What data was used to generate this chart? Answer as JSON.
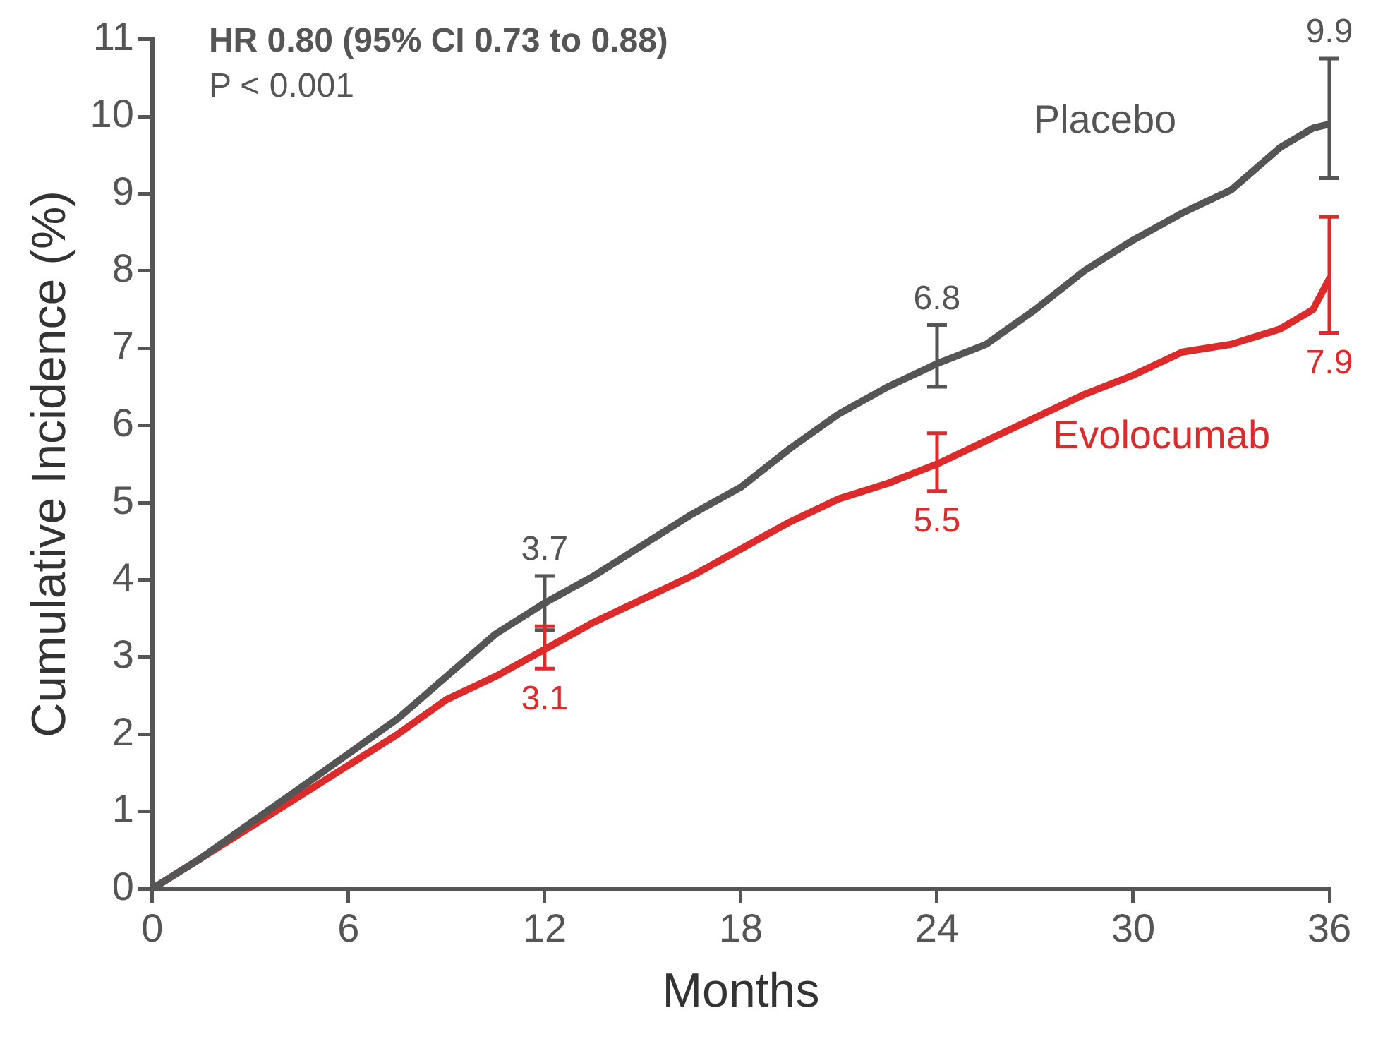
{
  "chart_data": {
    "type": "line",
    "xlabel": "Months",
    "ylabel": "Cumulative Incidence (%)",
    "annotations": [
      "HR 0.80 (95% CI 0.73 to 0.88)",
      "P < 0.001"
    ],
    "x": [
      0,
      1.5,
      3,
      4.5,
      6,
      7.5,
      9,
      10.5,
      12,
      13.5,
      15,
      16.5,
      18,
      19.5,
      21,
      22.5,
      24,
      25.5,
      27,
      28.5,
      30,
      31.5,
      33,
      34.5,
      35.5,
      36
    ],
    "series": [
      {
        "name": "Placebo",
        "color": "#555555",
        "values": [
          0,
          0.4,
          0.85,
          1.3,
          1.75,
          2.2,
          2.75,
          3.3,
          3.7,
          4.05,
          4.45,
          4.85,
          5.2,
          5.7,
          6.15,
          6.5,
          6.8,
          7.05,
          7.5,
          8.0,
          8.4,
          8.75,
          9.05,
          9.6,
          9.85,
          9.9
        ],
        "errors": [
          null,
          null,
          null,
          null,
          null,
          null,
          null,
          null,
          [
            3.35,
            4.05
          ],
          null,
          null,
          null,
          null,
          null,
          null,
          null,
          [
            6.5,
            7.3
          ],
          null,
          null,
          null,
          null,
          null,
          null,
          null,
          null,
          [
            9.2,
            10.75
          ]
        ],
        "value_labels": [
          null,
          null,
          null,
          null,
          null,
          null,
          null,
          null,
          "3.7",
          null,
          null,
          null,
          null,
          null,
          null,
          null,
          "6.8",
          null,
          null,
          null,
          null,
          null,
          null,
          null,
          null,
          "9.9"
        ]
      },
      {
        "name": "Evolocumab",
        "color": "#dd2a2a",
        "values": [
          0,
          0.4,
          0.8,
          1.2,
          1.6,
          2.0,
          2.45,
          2.75,
          3.1,
          3.45,
          3.75,
          4.05,
          4.4,
          4.75,
          5.05,
          5.25,
          5.5,
          5.8,
          6.1,
          6.4,
          6.65,
          6.95,
          7.05,
          7.25,
          7.5,
          7.9
        ],
        "errors": [
          null,
          null,
          null,
          null,
          null,
          null,
          null,
          null,
          [
            2.85,
            3.4
          ],
          null,
          null,
          null,
          null,
          null,
          null,
          null,
          [
            5.15,
            5.9
          ],
          null,
          null,
          null,
          null,
          null,
          null,
          null,
          null,
          [
            7.2,
            8.7
          ]
        ],
        "value_labels": [
          null,
          null,
          null,
          null,
          null,
          null,
          null,
          null,
          "3.1",
          null,
          null,
          null,
          null,
          null,
          null,
          null,
          "5.5",
          null,
          null,
          null,
          null,
          null,
          null,
          null,
          null,
          "7.9"
        ]
      }
    ],
    "xlim": [
      0,
      36
    ],
    "xticks": [
      0,
      6,
      12,
      18,
      24,
      30,
      36
    ],
    "ylim": [
      0,
      11
    ],
    "yticks": [
      0,
      1,
      2,
      3,
      4,
      5,
      6,
      7,
      8,
      9,
      10,
      11
    ],
    "grid": false,
    "legend": false,
    "marker": "none",
    "line_style": "solid"
  }
}
